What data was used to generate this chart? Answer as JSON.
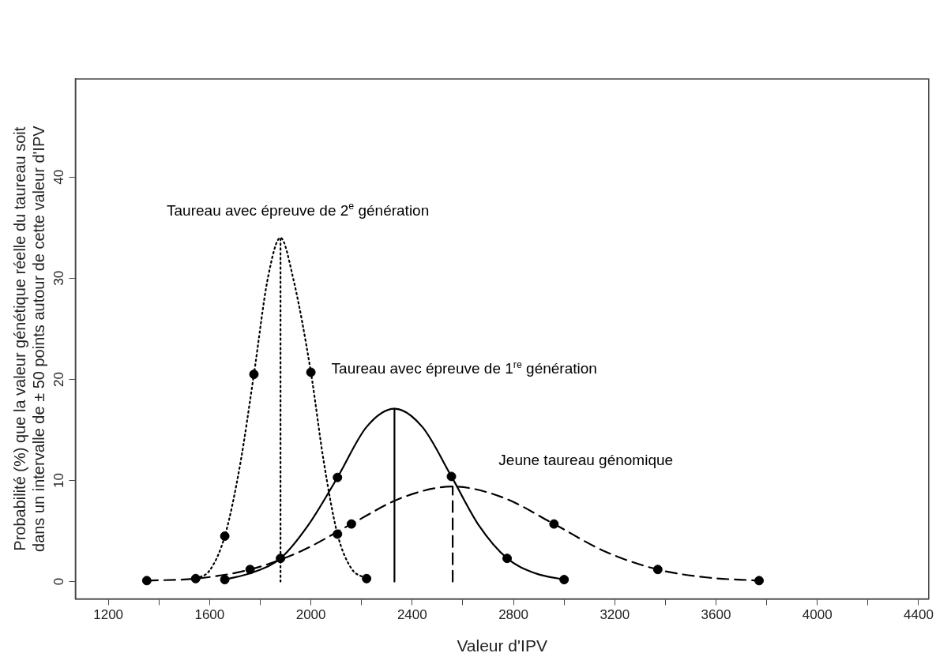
{
  "chart_data": {
    "type": "line",
    "xlabel": "Valeur d'IPV",
    "ylabel": "Probabilité (%) que la valeur génétique réelle du taureau soit dans un intervalle de ± 50 points autour de cette valeur d'IPV",
    "xlim": [
      1070,
      4440
    ],
    "ylim": [
      -1.7,
      49.7
    ],
    "xticks": [
      1200,
      {
        "value": 1400,
        "label": null
      },
      1600,
      {
        "value": 1800,
        "label": null
      },
      2000,
      {
        "value": 2200,
        "label": null
      },
      2400,
      {
        "value": 2600,
        "label": null
      },
      2800,
      {
        "value": 3000,
        "label": null
      },
      3200,
      {
        "value": 3400,
        "label": null
      },
      3600,
      {
        "value": 3800,
        "label": null
      },
      4000,
      {
        "value": 4200,
        "label": null
      },
      4400
    ],
    "yticks": [
      0,
      10,
      20,
      30,
      40
    ],
    "grid": false,
    "legend": false,
    "marker": "none",
    "series": [
      {
        "color": "#000000",
        "line_style": "dotted",
        "x": [
          1545,
          1600,
          1660,
          1720,
          1775,
          1830,
          1880,
          1930,
          2000,
          2050,
          2105,
          2160,
          2220
        ],
        "values": [
          0.3,
          1.1,
          4.5,
          11.5,
          20.5,
          30,
          34,
          30,
          20.7,
          12,
          4.7,
          1.3,
          0.3
        ]
      },
      {
        "color": "#000000",
        "line_style": "solid",
        "x": [
          1660,
          1770,
          1880,
          1990,
          2105,
          2220,
          2330,
          2440,
          2555,
          2665,
          2775,
          2890,
          3000
        ],
        "values": [
          0.2,
          0.9,
          2.3,
          5.6,
          10.3,
          15.3,
          17.1,
          15.3,
          10.4,
          5.5,
          2.3,
          0.8,
          0.2
        ]
      },
      {
        "color": "#000000",
        "line_style": "dashed",
        "x": [
          1352,
          1545,
          1760,
          1960,
          2160,
          2360,
          2560,
          2760,
          2960,
          3160,
          3370,
          3570,
          3770
        ],
        "values": [
          0.1,
          0.3,
          1.2,
          3.0,
          5.7,
          8.3,
          9.4,
          8.3,
          5.7,
          3.0,
          1.2,
          0.4,
          0.1
        ]
      },
      {
        "color": "#000000",
        "line_style": "dotted",
        "x": [
          1880,
          1880
        ],
        "values": [
          0,
          34
        ]
      },
      {
        "color": "#000000",
        "line_style": "solid",
        "x": [
          2330,
          2330
        ],
        "values": [
          0,
          17.1
        ]
      },
      {
        "color": "#000000",
        "line_style": "dashed",
        "x": [
          2560,
          2560
        ],
        "values": [
          0,
          9.4
        ]
      },
      {
        "type": "scatter",
        "marker": "circle",
        "color": "#000000",
        "x": [
          1660,
          1775,
          2000,
          2105,
          2220,
          1660,
          1880,
          2105,
          2555,
          2775,
          3000,
          1352,
          1545,
          1760,
          2160,
          2960,
          3370,
          3770
        ],
        "values": [
          4.5,
          20.5,
          20.7,
          4.7,
          0.3,
          0.2,
          2.3,
          10.3,
          10.4,
          2.3,
          0.2,
          0.1,
          0.3,
          1.2,
          5.7,
          5.7,
          1.2,
          0.1
        ]
      }
    ],
    "annotations": [
      "Taureau avec épreuve de 2$^{e}$ génération",
      "Taureau avec épreuve de 1$^{re}$ génération",
      "Jeune taureau génomique"
    ]
  }
}
